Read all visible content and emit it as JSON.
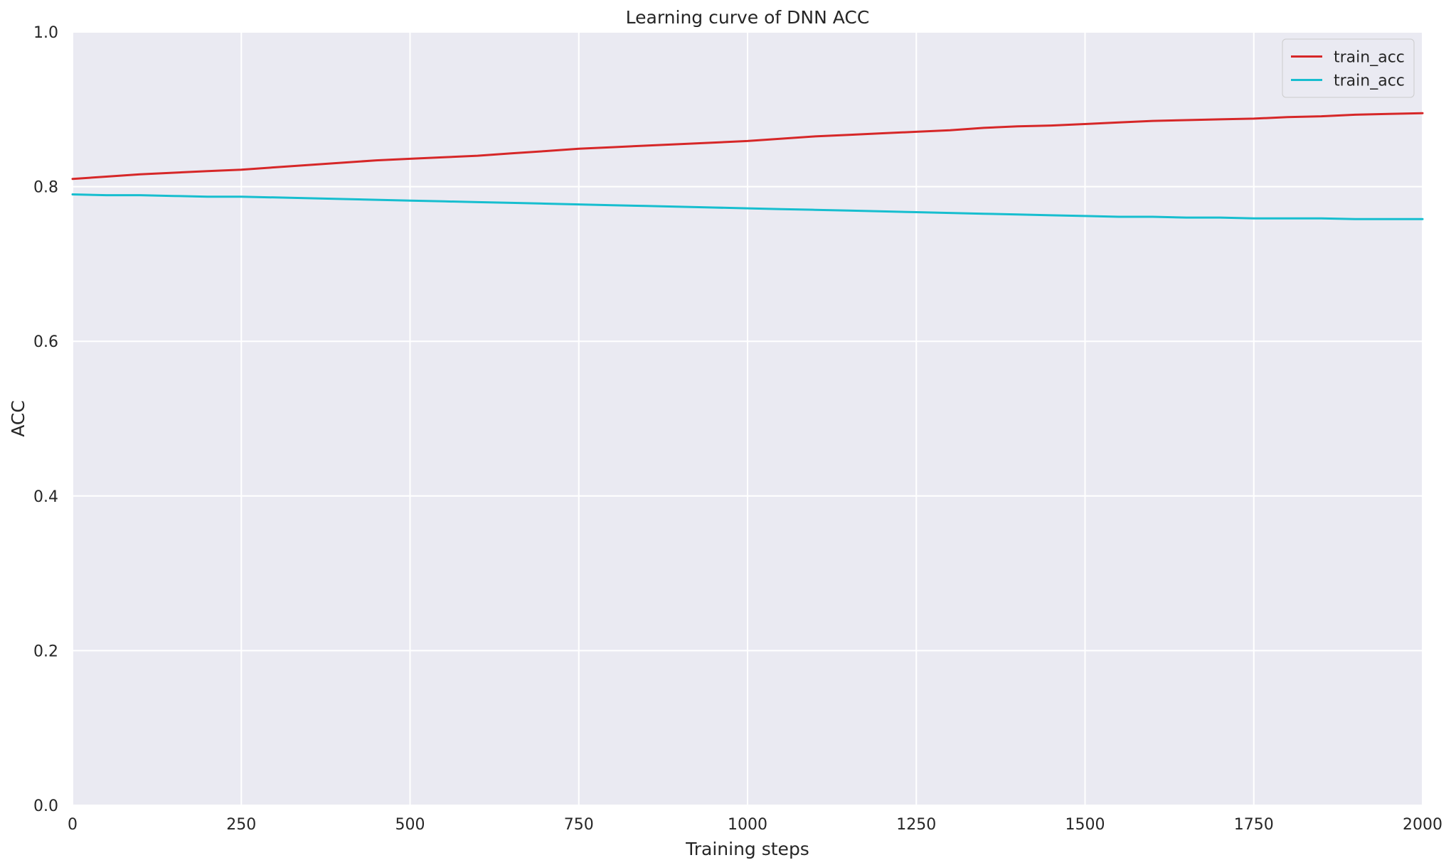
{
  "chart_data": {
    "type": "line",
    "title": "Learning curve of DNN ACC",
    "xlabel": "Training steps",
    "ylabel": "ACC",
    "xlim": [
      0,
      2000
    ],
    "ylim": [
      0.0,
      1.0
    ],
    "x_ticks": [
      0,
      250,
      500,
      750,
      1000,
      1250,
      1500,
      1750,
      2000
    ],
    "x_tick_labels": [
      "0",
      "250",
      "500",
      "750",
      "1000",
      "1250",
      "1500",
      "1750",
      "2000"
    ],
    "y_ticks": [
      0.0,
      0.2,
      0.4,
      0.6,
      0.8,
      1.0
    ],
    "y_tick_labels": [
      "0.0",
      "0.2",
      "0.4",
      "0.6",
      "0.8",
      "1.0"
    ],
    "grid": true,
    "legend_position": "top-right",
    "background_color": "#eaeaf2",
    "grid_color": "#ffffff",
    "series": [
      {
        "name": "train_acc",
        "color": "#d62728",
        "x": [
          0,
          50,
          100,
          150,
          200,
          250,
          300,
          350,
          400,
          450,
          500,
          550,
          600,
          650,
          700,
          750,
          800,
          850,
          900,
          950,
          1000,
          1050,
          1100,
          1150,
          1200,
          1250,
          1300,
          1350,
          1400,
          1450,
          1500,
          1550,
          1600,
          1650,
          1700,
          1750,
          1800,
          1850,
          1900,
          1950,
          2000
        ],
        "y": [
          0.81,
          0.813,
          0.816,
          0.818,
          0.82,
          0.822,
          0.825,
          0.828,
          0.831,
          0.834,
          0.836,
          0.838,
          0.84,
          0.843,
          0.846,
          0.849,
          0.851,
          0.853,
          0.855,
          0.857,
          0.859,
          0.862,
          0.865,
          0.867,
          0.869,
          0.871,
          0.873,
          0.876,
          0.878,
          0.879,
          0.881,
          0.883,
          0.885,
          0.886,
          0.887,
          0.888,
          0.89,
          0.891,
          0.893,
          0.894,
          0.895
        ]
      },
      {
        "name": "train_acc",
        "color": "#17becf",
        "x": [
          0,
          50,
          100,
          150,
          200,
          250,
          300,
          350,
          400,
          450,
          500,
          550,
          600,
          650,
          700,
          750,
          800,
          850,
          900,
          950,
          1000,
          1050,
          1100,
          1150,
          1200,
          1250,
          1300,
          1350,
          1400,
          1450,
          1500,
          1550,
          1600,
          1650,
          1700,
          1750,
          1800,
          1850,
          1900,
          1950,
          2000
        ],
        "y": [
          0.79,
          0.789,
          0.789,
          0.788,
          0.787,
          0.787,
          0.786,
          0.785,
          0.784,
          0.783,
          0.782,
          0.781,
          0.78,
          0.779,
          0.778,
          0.777,
          0.776,
          0.775,
          0.774,
          0.773,
          0.772,
          0.771,
          0.77,
          0.769,
          0.768,
          0.767,
          0.766,
          0.765,
          0.764,
          0.763,
          0.762,
          0.761,
          0.761,
          0.76,
          0.76,
          0.759,
          0.759,
          0.759,
          0.758,
          0.758,
          0.758
        ]
      }
    ]
  }
}
